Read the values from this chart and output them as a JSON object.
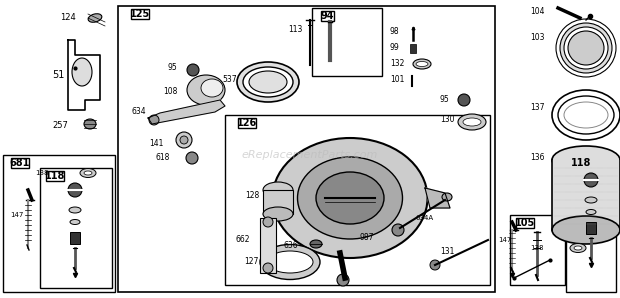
{
  "bg_color": "#ffffff",
  "fig_width": 6.2,
  "fig_height": 2.98,
  "dpi": 100,
  "watermark": "eReplacementParts.com",
  "watermark_color": "#bbbbbb"
}
